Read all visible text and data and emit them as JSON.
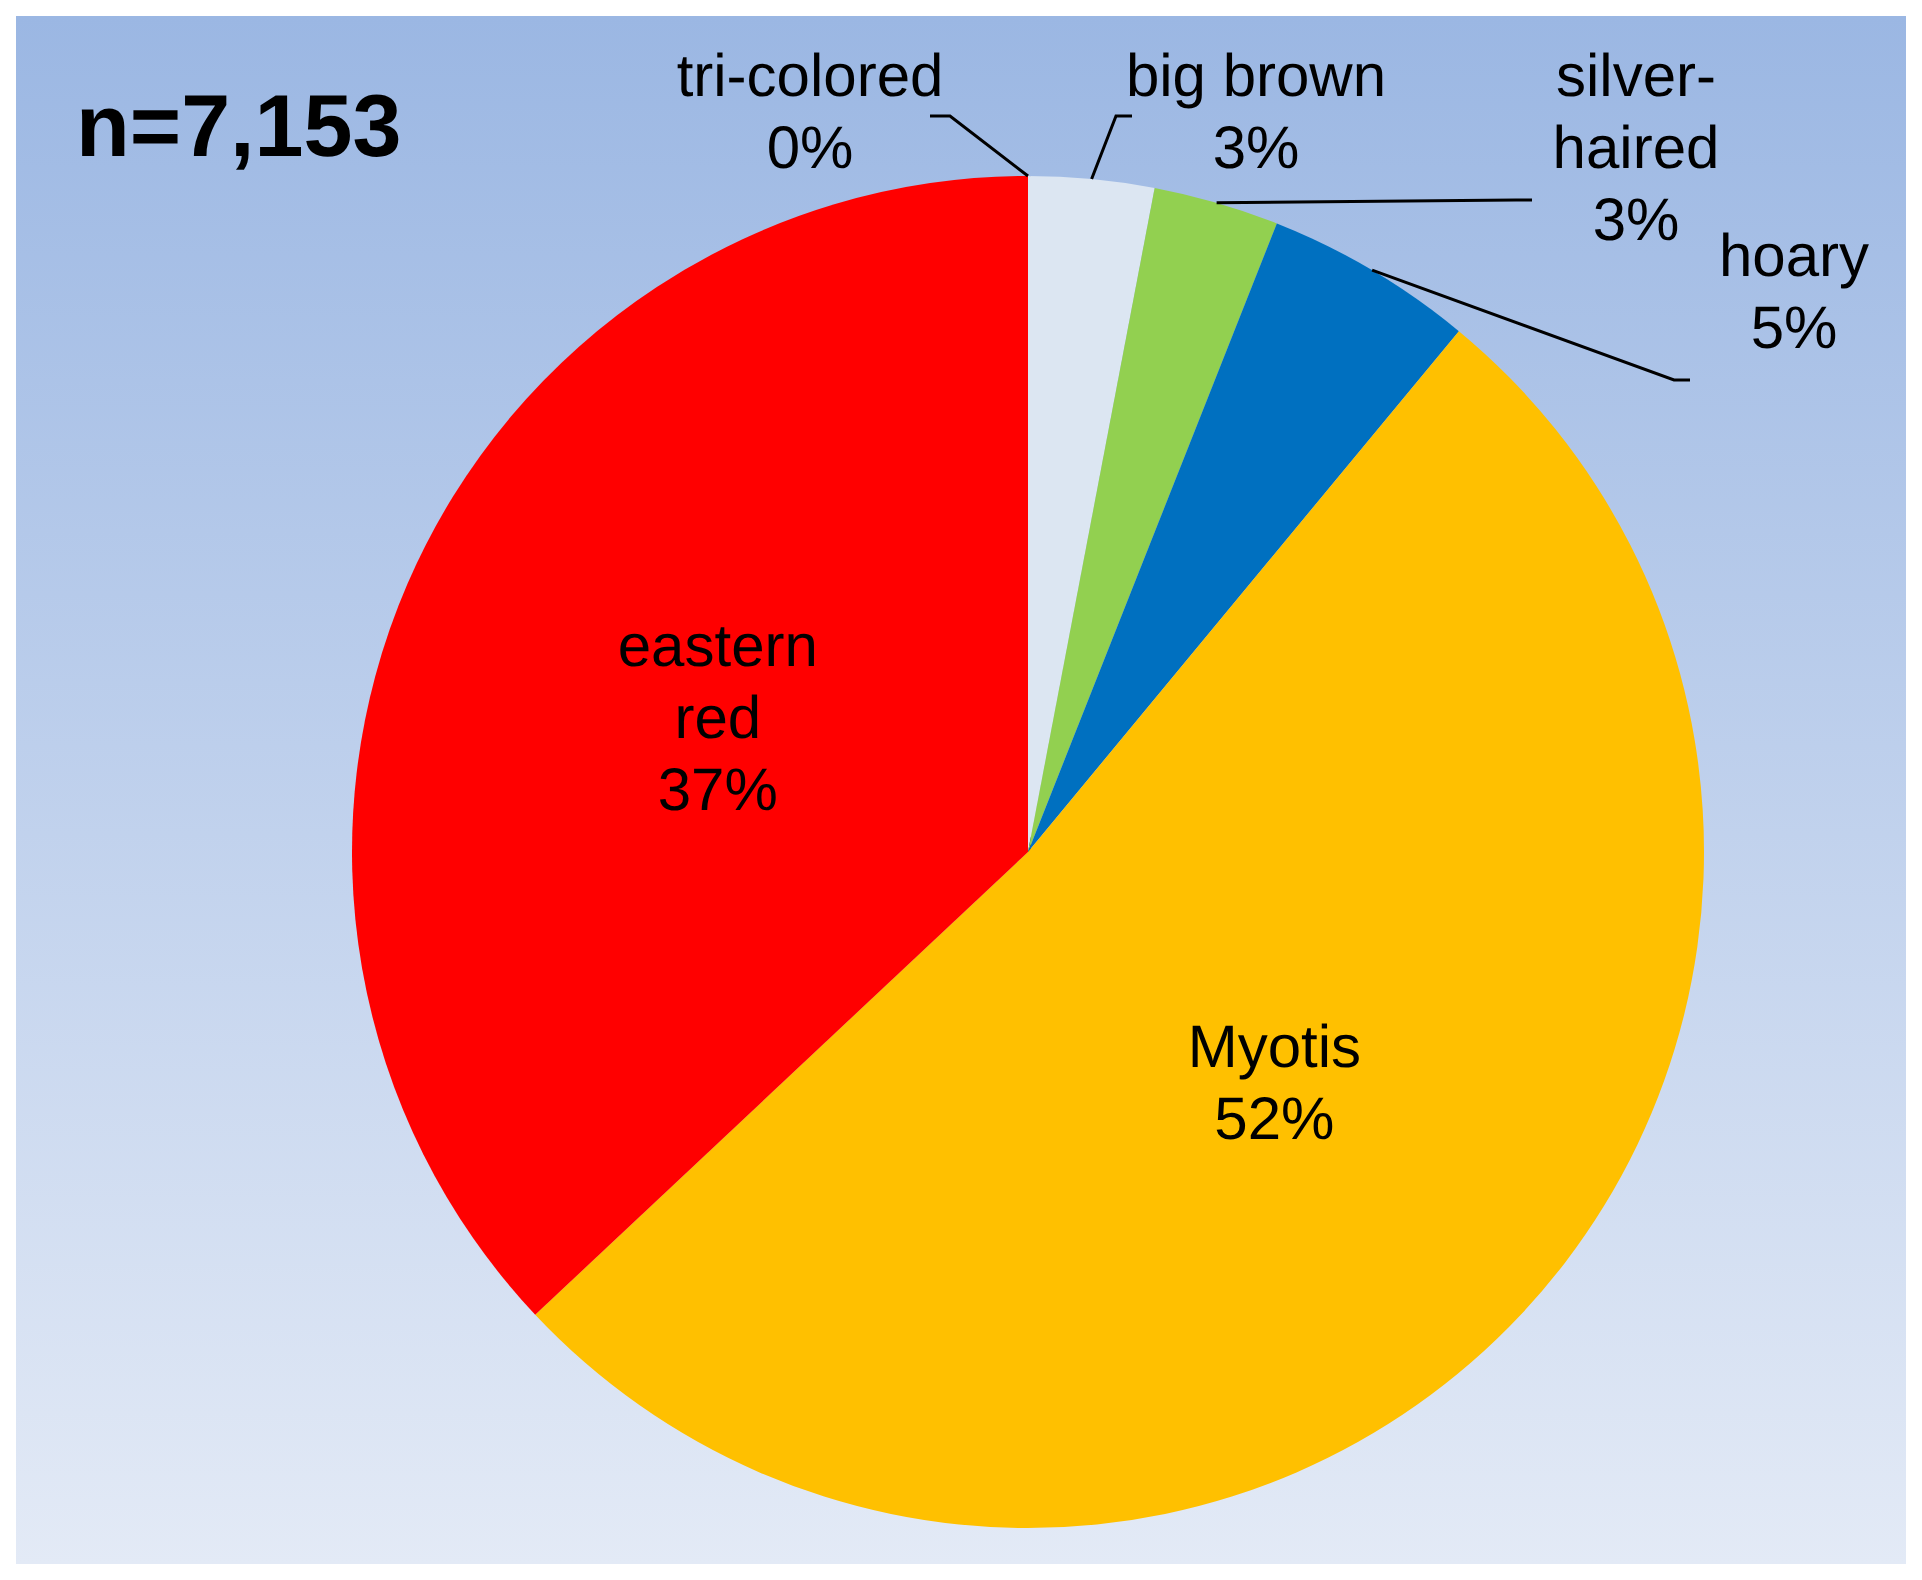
{
  "chart_data": {
    "type": "pie",
    "title": "n=7,153",
    "categories": [
      "tri-colored",
      "big brown",
      "silver-haired",
      "hoary",
      "Myotis",
      "eastern red"
    ],
    "values": [
      0,
      3,
      3,
      5,
      52,
      37
    ],
    "colors": [
      "#002060",
      "#dce6f2",
      "#92d050",
      "#0070c0",
      "#ffc000",
      "#ff0000"
    ],
    "value_labels": [
      "0%",
      "3%",
      "3%",
      "5%",
      "52%",
      "37%"
    ]
  }
}
